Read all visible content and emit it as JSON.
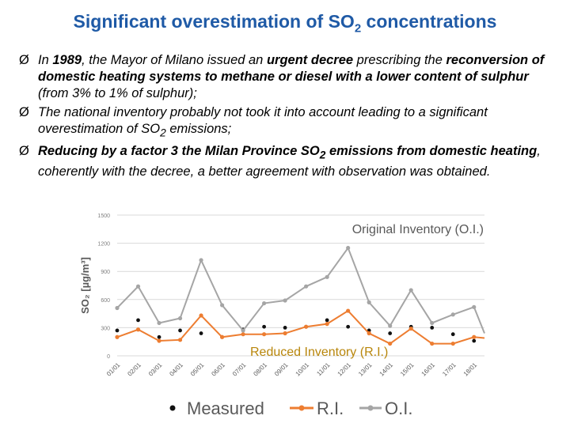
{
  "title": {
    "pre": "Significant overestimation of SO",
    "sub": "2",
    "post": " concentrations"
  },
  "bullets": [
    {
      "marker": "Ø",
      "t1": "In ",
      "b1": "1989",
      "t2": ", the Mayor of Milano issued an ",
      "b2": "urgent decree",
      "t3": " prescribing the ",
      "b3": "reconversion of domestic heating systems to methane or diesel with a lower content of sulphur",
      "t4": " (from 3% to 1% of sulphur);"
    },
    {
      "marker": "Ø",
      "t1": "The national inventory probably not took it into account leading to a significant overestimation of SO",
      "sub": "2",
      "t2": " emissions;"
    },
    {
      "marker": "Ø",
      "b1": "Reducing by a factor 3 the Milan Province SO",
      "sub": "2",
      "b2": " emissions from domestic heating",
      "t1": ", coherently with  the decree,  a better agreement with observation was obtained."
    }
  ],
  "chart_data": {
    "type": "line",
    "ylabel": "SO₂ [µg/m³]",
    "ylim": [
      0,
      1500
    ],
    "yticks": [
      0,
      300,
      600,
      900,
      1200,
      1500
    ],
    "categories": [
      "01/01",
      "02/01",
      "03/01",
      "04/01",
      "05/01",
      "06/01",
      "07/01",
      "08/01",
      "09/01",
      "10/01",
      "11/01",
      "12/01",
      "13/01",
      "14/01",
      "15/01",
      "16/01",
      "17/01",
      "18/01"
    ],
    "x": [
      1,
      1.75,
      2,
      2.5,
      3,
      3.5,
      4,
      4.5,
      5,
      5.5,
      6,
      6.5,
      7,
      7.5,
      8,
      8.5,
      9,
      9.5,
      10,
      10.5,
      11,
      11.5,
      12,
      12.5,
      13,
      13.5,
      14,
      14.5,
      15,
      15.5,
      16,
      16.5,
      17,
      17.5,
      18,
      18.5
    ],
    "series": [
      {
        "name": "Measured",
        "color": "#111111",
        "style": "points",
        "x": [
          1,
          2,
          3,
          4,
          5,
          6,
          7,
          8,
          9,
          10,
          11,
          12,
          13,
          14,
          15,
          16,
          17,
          18
        ],
        "values": [
          270,
          380,
          200,
          270,
          240,
          200,
          280,
          310,
          300,
          310,
          380,
          310,
          270,
          240,
          310,
          300,
          230,
          160
        ]
      },
      {
        "name": "R.I.",
        "color": "#ed7d31",
        "style": "line",
        "x": [
          1,
          2,
          3,
          4,
          5,
          6,
          7,
          8,
          9,
          10,
          11,
          12,
          13,
          14,
          15,
          16,
          17,
          18,
          18.5
        ],
        "values": [
          200,
          280,
          160,
          170,
          430,
          200,
          230,
          230,
          240,
          310,
          340,
          480,
          240,
          130,
          290,
          130,
          130,
          200,
          190
        ]
      },
      {
        "name": "O.I.",
        "color": "#a5a5a5",
        "style": "line",
        "x": [
          1,
          2,
          3,
          4,
          5,
          6,
          7,
          8,
          9,
          10,
          11,
          12,
          13,
          14,
          15,
          16,
          17,
          18,
          18.5
        ],
        "values": [
          510,
          740,
          350,
          400,
          1020,
          540,
          270,
          560,
          590,
          740,
          840,
          1150,
          570,
          320,
          700,
          350,
          440,
          520,
          240
        ]
      }
    ],
    "annotations": [
      "Original Inventory (O.I.)",
      "Reduced Inventory (R.I.)"
    ],
    "legend": [
      "Measured",
      "R.I.",
      "O.I."
    ],
    "legend_position": "bottom",
    "grid": true
  }
}
